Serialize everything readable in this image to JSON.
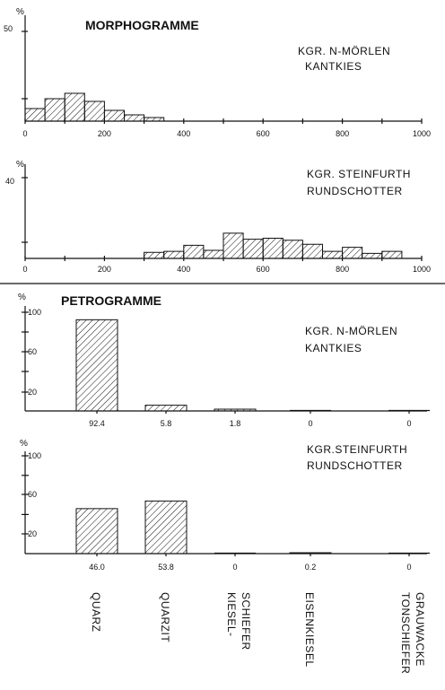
{
  "chart_data": [
    {
      "type": "bar",
      "title": "MORPHOGRAMME",
      "note": [
        "KGR. N-MÖRLEN",
        "KANTKIES"
      ],
      "unit": "%",
      "y_tick_label": "50",
      "ylim": [
        0,
        50
      ],
      "x_ticks": [
        "0",
        "200",
        "400",
        "600",
        "800",
        "1000"
      ],
      "xlim": [
        0,
        1000
      ],
      "bin_width": 50,
      "x": [
        0,
        50,
        100,
        150,
        200,
        250,
        300
      ],
      "values": [
        7,
        12.5,
        15.5,
        11,
        6,
        3.5,
        2
      ]
    },
    {
      "type": "bar",
      "note": [
        "KGR. STEINFURTH",
        "RUNDSCHOTTER"
      ],
      "unit": "%",
      "y_tick_label": "40",
      "ylim": [
        0,
        40
      ],
      "x_ticks": [
        "0",
        "200",
        "400",
        "600",
        "800",
        "1000"
      ],
      "xlim": [
        0,
        1000
      ],
      "bin_width": 50,
      "x": [
        300,
        350,
        400,
        450,
        500,
        550,
        600,
        650,
        700,
        750,
        800,
        850,
        900
      ],
      "values": [
        3,
        3.5,
        6.5,
        4,
        12.5,
        9.5,
        10,
        9,
        7,
        3.5,
        5.5,
        2.5,
        3.5
      ]
    },
    {
      "type": "bar",
      "title": "PETROGRAMME",
      "note": [
        "KGR. N-MÖRLEN",
        "KANTKIES"
      ],
      "unit": "%",
      "y_ticks": [
        "100",
        "60",
        "20"
      ],
      "ylim": [
        0,
        100
      ],
      "categories": [
        "QUARZ",
        "QUARZIT",
        "KIESEL-SCHIEFER",
        "EISENKIESEL",
        "TONSCHIEFER GRAUWACKE"
      ],
      "values": [
        92.4,
        5.8,
        1.8,
        0,
        0
      ],
      "value_labels": [
        "92.4",
        "5.8",
        "1.8",
        "0",
        "0"
      ]
    },
    {
      "type": "bar",
      "note": [
        "KGR.STEINFURTH",
        "RUNDSCHOTTER"
      ],
      "unit": "%",
      "y_ticks": [
        "100",
        "60",
        "20"
      ],
      "ylim": [
        0,
        100
      ],
      "categories": [
        "QUARZ",
        "QUARZIT",
        "KIESEL-SCHIEFER",
        "EISENKIESEL",
        "TONSCHIEFER GRAUWACKE"
      ],
      "values": [
        46.0,
        53.8,
        0,
        0.2,
        0
      ],
      "value_labels": [
        "46.0",
        "53.8",
        "0",
        "0.2",
        "0"
      ]
    }
  ],
  "categories_axis": {
    "labels": [
      [
        "QUARZ"
      ],
      [
        "QUARZIT"
      ],
      [
        "KIESEL-",
        "SCHIEFER"
      ],
      [
        "EISENKIESEL"
      ],
      [
        "TONSCHIEFER",
        "GRAUWACKE"
      ]
    ]
  },
  "colors": {
    "ink": "#111111",
    "paper": "#ffffff"
  }
}
